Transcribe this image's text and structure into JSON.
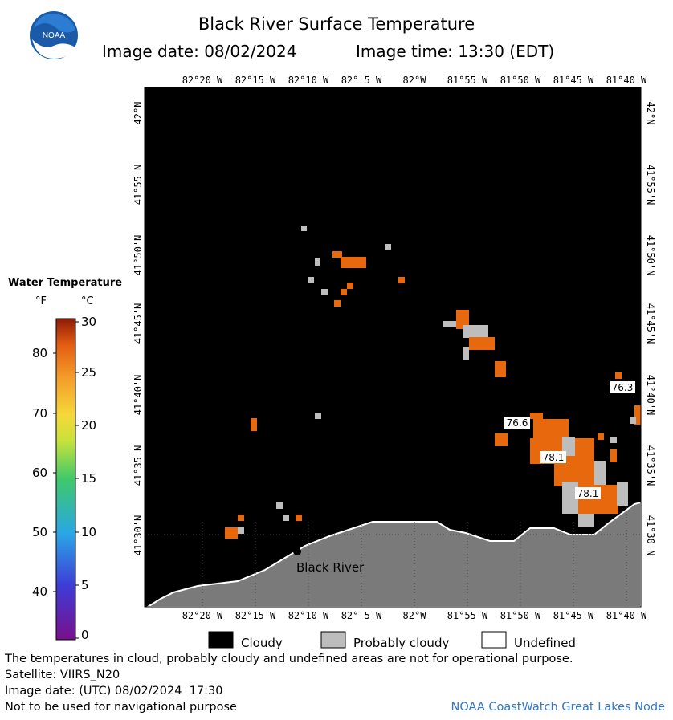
{
  "header": {
    "title": "Black River Surface Temperature",
    "image_date_label": "Image date: 08/02/2024",
    "image_time_label": "Image time: 13:30 (EDT)",
    "logo_text": "NOAA"
  },
  "map": {
    "longitude_ticks": [
      "82°20'W",
      "82°15'W",
      "82°10'W",
      "82° 5'W",
      "82°W",
      "81°55'W",
      "81°50'W",
      "81°45'W",
      "81°40'W"
    ],
    "latitude_ticks": [
      "42°N",
      "41°55'N",
      "41°50'N",
      "41°45'N",
      "41°40'N",
      "41°35'N",
      "41°30'N"
    ],
    "place_label": "Black River",
    "temperature_labels": [
      "76.3",
      "76.6",
      "78.1",
      "78.1"
    ],
    "colors": {
      "cloud": "#000000",
      "land": "#7a7a7a",
      "warm_water": "#e8680e",
      "probably_cloudy": "#bdbdbd"
    }
  },
  "legend": {
    "title": "Water Temperature",
    "unit_f": "°F",
    "unit_c": "°C",
    "f_ticks": [
      "80",
      "70",
      "60",
      "50",
      "40"
    ],
    "c_ticks": [
      "30",
      "25",
      "20",
      "15",
      "10",
      "5",
      "0"
    ],
    "c_range": [
      0,
      30
    ]
  },
  "key": {
    "cloudy": "Cloudy",
    "probably_cloudy": "Probably cloudy",
    "undefined": "Undefined"
  },
  "footer": {
    "disclaimer": "The temperatures in cloud, probably cloudy and undefined areas are not for operational purpose.",
    "satellite": "Satellite: VIIRS_N20",
    "utc_date": "Image date: (UTC) 08/02/2024  17:30",
    "navigation": "Not to be used for navigational purpose",
    "credit": "NOAA CoastWatch Great Lakes Node"
  }
}
